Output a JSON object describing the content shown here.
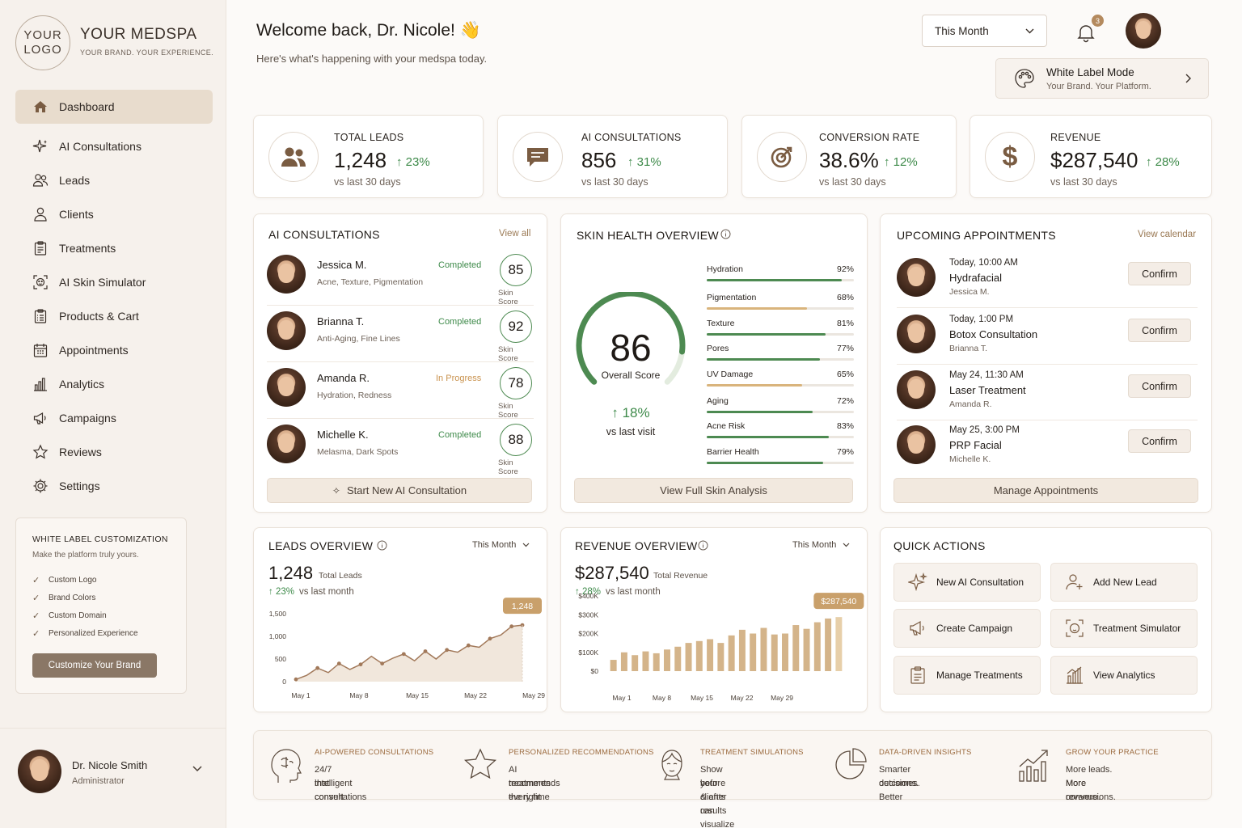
{
  "brand": {
    "logo_line1": "YOUR",
    "logo_line2": "LOGO",
    "name": "YOUR MEDSPA",
    "tagline": "YOUR BRAND. YOUR EXPERIENCE."
  },
  "nav": [
    {
      "label": "Dashboard",
      "icon": "home-icon"
    },
    {
      "label": "AI Consultations",
      "icon": "sparkle-icon"
    },
    {
      "label": "Leads",
      "icon": "users-icon"
    },
    {
      "label": "Clients",
      "icon": "user-icon"
    },
    {
      "label": "Treatments",
      "icon": "clipboard-icon"
    },
    {
      "label": "AI Skin Simulator",
      "icon": "face-scan-icon"
    },
    {
      "label": "Products & Cart",
      "icon": "clipboard-list-icon"
    },
    {
      "label": "Appointments",
      "icon": "calendar-icon"
    },
    {
      "label": "Analytics",
      "icon": "bar-chart-icon"
    },
    {
      "label": "Campaigns",
      "icon": "megaphone-icon"
    },
    {
      "label": "Reviews",
      "icon": "star-icon"
    },
    {
      "label": "Settings",
      "icon": "gear-icon"
    }
  ],
  "white_label_box": {
    "title": "WHITE LABEL CUSTOMIZATION",
    "subtitle": "Make the platform truly yours.",
    "items": [
      "Custom Logo",
      "Brand Colors",
      "Custom Domain",
      "Personalized Experience"
    ],
    "button": "Customize Your Brand"
  },
  "profile": {
    "name": "Dr. Nicole Smith",
    "role": "Administrator"
  },
  "header": {
    "welcome": "Welcome back, Dr. Nicole! 👋",
    "subtitle": "Here's what's happening with your medspa today.",
    "period": "This Month",
    "notifications": "3"
  },
  "white_label_mode": {
    "title": "White Label Mode",
    "subtitle": "Your Brand. Your Platform."
  },
  "kpis": [
    {
      "label": "TOTAL LEADS",
      "value": "1,248",
      "change": "↑ 23%",
      "sub": "vs last 30 days"
    },
    {
      "label": "AI CONSULTATIONS",
      "value": "856",
      "change": "↑ 31%",
      "sub": "vs last 30 days"
    },
    {
      "label": "CONVERSION RATE",
      "value": "38.6%",
      "change": "↑ 12%",
      "sub": "vs last 30 days"
    },
    {
      "label": "REVENUE",
      "value": "$287,540",
      "change": "↑ 28%",
      "sub": "vs last 30 days"
    }
  ],
  "consultations": {
    "title": "AI CONSULTATIONS",
    "link": "View all",
    "score_label": "Skin Score",
    "button": "Start New AI Consultation",
    "rows": [
      {
        "name": "Jessica M.",
        "concerns": "Acne, Texture, Pigmentation",
        "status": "Completed",
        "score": "85"
      },
      {
        "name": "Brianna T.",
        "concerns": "Anti-Aging, Fine Lines",
        "status": "Completed",
        "score": "92"
      },
      {
        "name": "Amanda R.",
        "concerns": "Hydration, Redness",
        "status": "In Progress",
        "score": "78"
      },
      {
        "name": "Michelle K.",
        "concerns": "Melasma, Dark Spots",
        "status": "Completed",
        "score": "88"
      }
    ]
  },
  "skin": {
    "title": "SKIN HEALTH OVERVIEW",
    "score": "86",
    "score_label": "Overall Score",
    "score_fraction": 0.86,
    "change": "↑ 18%",
    "change_sub": "vs last visit",
    "button": "View Full Skin Analysis",
    "metrics": [
      {
        "label": "Hydration",
        "value": "92%",
        "pct": 92,
        "color": "#4d8a51"
      },
      {
        "label": "Pigmentation",
        "value": "68%",
        "pct": 68,
        "color": "#d9b47c"
      },
      {
        "label": "Texture",
        "value": "81%",
        "pct": 81,
        "color": "#4d8a51"
      },
      {
        "label": "Pores",
        "value": "77%",
        "pct": 77,
        "color": "#4d8a51"
      },
      {
        "label": "UV Damage",
        "value": "65%",
        "pct": 65,
        "color": "#d9b47c"
      },
      {
        "label": "Aging",
        "value": "72%",
        "pct": 72,
        "color": "#4d8a51"
      },
      {
        "label": "Acne Risk",
        "value": "83%",
        "pct": 83,
        "color": "#4d8a51"
      },
      {
        "label": "Barrier Health",
        "value": "79%",
        "pct": 79,
        "color": "#4d8a51"
      }
    ]
  },
  "appointments": {
    "title": "UPCOMING APPOINTMENTS",
    "link": "View calendar",
    "confirm": "Confirm",
    "button": "Manage Appointments",
    "rows": [
      {
        "when": "Today, 10:00 AM",
        "service": "Hydrafacial",
        "client": "Jessica M."
      },
      {
        "when": "Today, 1:00 PM",
        "service": "Botox Consultation",
        "client": "Brianna T."
      },
      {
        "when": "May 24, 11:30 AM",
        "service": "Laser Treatment",
        "client": "Amanda R."
      },
      {
        "when": "May 25, 3:00 PM",
        "service": "PRP Facial",
        "client": "Michelle K."
      }
    ]
  },
  "leads_overview": {
    "title": "LEADS OVERVIEW",
    "period": "This Month",
    "value": "1,248",
    "value_label": "Total Leads",
    "change": "↑ 23%",
    "change_sub": "vs last month"
  },
  "revenue_overview": {
    "title": "REVENUE OVERVIEW",
    "period": "This Month",
    "value": "$287,540",
    "value_label": "Total Revenue",
    "change": "↑ 28%",
    "change_sub": "vs last month"
  },
  "chart_data": [
    {
      "type": "area",
      "callout": "1,248",
      "y_ticks": [
        "1,500",
        "1,000",
        "500",
        "0"
      ],
      "ylim": [
        0,
        1500
      ],
      "x_ticks": [
        "May 1",
        "May 8",
        "May 15",
        "May 22",
        "May 29"
      ],
      "values": [
        50,
        140,
        300,
        200,
        400,
        270,
        380,
        560,
        400,
        520,
        610,
        460,
        670,
        500,
        700,
        650,
        800,
        760,
        950,
        1030,
        1220,
        1248
      ]
    },
    {
      "type": "bar",
      "callout": "$287,540",
      "y_ticks": [
        "$400K",
        "$300K",
        "$200K",
        "$100K",
        "$0"
      ],
      "ylim": [
        0,
        400000
      ],
      "x_ticks": [
        "May 1",
        "May 8",
        "May 15",
        "May 22",
        "May 29"
      ],
      "values": [
        60000,
        100000,
        85000,
        105000,
        95000,
        115000,
        130000,
        150000,
        160000,
        170000,
        150000,
        190000,
        220000,
        200000,
        230000,
        195000,
        200000,
        245000,
        225000,
        260000,
        280000,
        287540
      ]
    }
  ],
  "quick_actions": {
    "title": "QUICK ACTIONS",
    "items": [
      {
        "label": "New AI Consultation",
        "icon": "sparkle-icon"
      },
      {
        "label": "Add New Lead",
        "icon": "add-user-icon"
      },
      {
        "label": "Create Campaign",
        "icon": "megaphone-icon"
      },
      {
        "label": "Treatment Simulator",
        "icon": "face-scan-icon"
      },
      {
        "label": "Manage Treatments",
        "icon": "clipboard-icon"
      },
      {
        "label": "View Analytics",
        "icon": "bar-chart-icon"
      }
    ]
  },
  "features": [
    {
      "title": "AI-POWERED CONSULTATIONS",
      "line1": "24/7 intelligent consultations",
      "line2": "that convert",
      "icon": "brain-icon"
    },
    {
      "title": "PERSONALIZED RECOMMENDATIONS",
      "line1": "AI recommends the right",
      "line2": "treatments every time",
      "icon": "star-icon"
    },
    {
      "title": "TREATMENT SIMULATIONS",
      "line1": "Show before & after results",
      "line2": "your clients can visualize",
      "icon": "face-icon"
    },
    {
      "title": "DATA-DRIVEN INSIGHTS",
      "line1": "Smarter decisions. Better",
      "line2": "outcomes.",
      "icon": "pie-chart-icon"
    },
    {
      "title": "GROW YOUR PRACTICE",
      "line1": "More leads. More conversions.",
      "line2": "More revenue.",
      "icon": "growth-chart-icon"
    }
  ],
  "colors": {
    "accent": "#8a7766",
    "green": "#3e8a4a",
    "gold": "#c9a06b",
    "bg": "#fcfaf8"
  }
}
